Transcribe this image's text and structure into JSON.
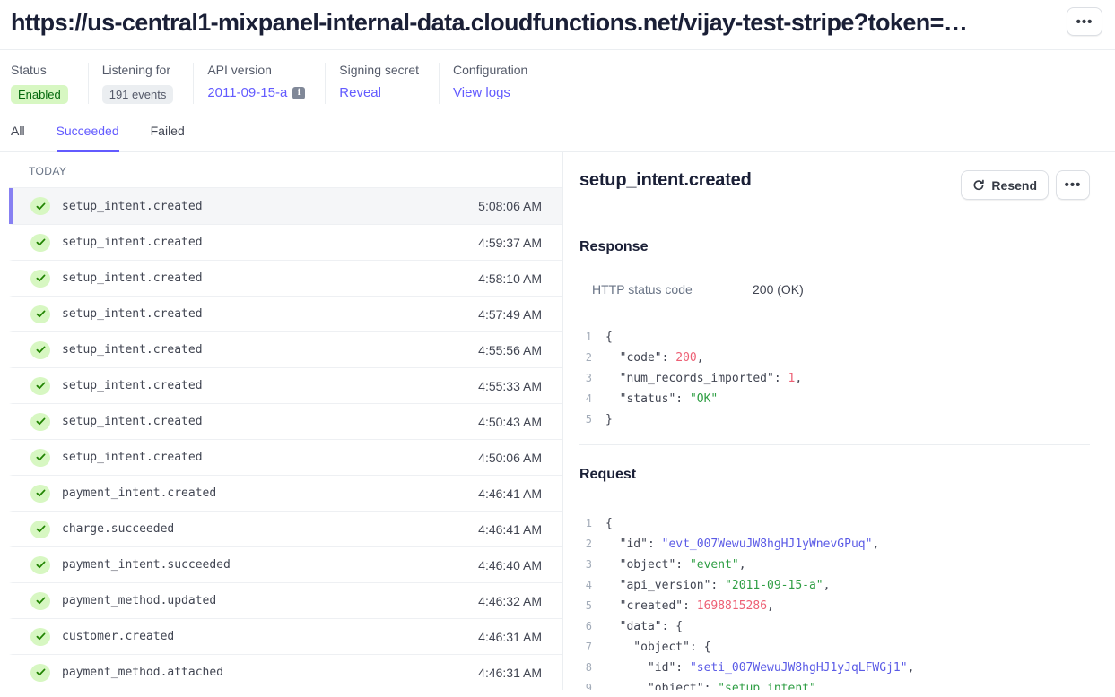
{
  "header": {
    "url_title": "https://us-central1-mixpanel-internal-data.cloudfunctions.net/vijay-test-stripe?token=…",
    "more_label": "•••"
  },
  "info_bar": {
    "status": {
      "label": "Status",
      "value": "Enabled"
    },
    "listening": {
      "label": "Listening for",
      "value": "191 events"
    },
    "api_version": {
      "label": "API version",
      "value": "2011-09-15-a",
      "info_icon": "i"
    },
    "signing_secret": {
      "label": "Signing secret",
      "value": "Reveal"
    },
    "configuration": {
      "label": "Configuration",
      "value": "View logs"
    }
  },
  "tabs": {
    "all": "All",
    "succeeded": "Succeeded",
    "failed": "Failed",
    "active": "Succeeded"
  },
  "event_list": {
    "group_label": "TODAY",
    "events": [
      {
        "name": "setup_intent.created",
        "time": "5:08:06 AM",
        "selected": true
      },
      {
        "name": "setup_intent.created",
        "time": "4:59:37 AM",
        "selected": false
      },
      {
        "name": "setup_intent.created",
        "time": "4:58:10 AM",
        "selected": false
      },
      {
        "name": "setup_intent.created",
        "time": "4:57:49 AM",
        "selected": false
      },
      {
        "name": "setup_intent.created",
        "time": "4:55:56 AM",
        "selected": false
      },
      {
        "name": "setup_intent.created",
        "time": "4:55:33 AM",
        "selected": false
      },
      {
        "name": "setup_intent.created",
        "time": "4:50:43 AM",
        "selected": false
      },
      {
        "name": "setup_intent.created",
        "time": "4:50:06 AM",
        "selected": false
      },
      {
        "name": "payment_intent.created",
        "time": "4:46:41 AM",
        "selected": false
      },
      {
        "name": "charge.succeeded",
        "time": "4:46:41 AM",
        "selected": false
      },
      {
        "name": "payment_intent.succeeded",
        "time": "4:46:40 AM",
        "selected": false
      },
      {
        "name": "payment_method.updated",
        "time": "4:46:32 AM",
        "selected": false
      },
      {
        "name": "customer.created",
        "time": "4:46:31 AM",
        "selected": false
      },
      {
        "name": "payment_method.attached",
        "time": "4:46:31 AM",
        "selected": false
      }
    ]
  },
  "detail": {
    "title": "setup_intent.created",
    "resend_label": "Resend",
    "more_label": "•••",
    "response": {
      "heading": "Response",
      "http_label": "HTTP status code",
      "http_value": "200 (OK)",
      "lines": [
        [
          {
            "t": "{",
            "c": "p"
          }
        ],
        [
          {
            "t": "  \"code\"",
            "c": "k"
          },
          {
            "t": ": ",
            "c": "p"
          },
          {
            "t": "200",
            "c": "n"
          },
          {
            "t": ",",
            "c": "p"
          }
        ],
        [
          {
            "t": "  \"num_records_imported\"",
            "c": "k"
          },
          {
            "t": ": ",
            "c": "p"
          },
          {
            "t": "1",
            "c": "n"
          },
          {
            "t": ",",
            "c": "p"
          }
        ],
        [
          {
            "t": "  \"status\"",
            "c": "k"
          },
          {
            "t": ": ",
            "c": "p"
          },
          {
            "t": "\"OK\"",
            "c": "s"
          }
        ],
        [
          {
            "t": "}",
            "c": "p"
          }
        ]
      ]
    },
    "request": {
      "heading": "Request",
      "lines": [
        [
          {
            "t": "{",
            "c": "p"
          }
        ],
        [
          {
            "t": "  \"id\"",
            "c": "k"
          },
          {
            "t": ": ",
            "c": "p"
          },
          {
            "t": "\"evt_007WewuJW8hgHJ1yWnevGPuq\"",
            "c": "id"
          },
          {
            "t": ",",
            "c": "p"
          }
        ],
        [
          {
            "t": "  \"object\"",
            "c": "k"
          },
          {
            "t": ": ",
            "c": "p"
          },
          {
            "t": "\"event\"",
            "c": "s"
          },
          {
            "t": ",",
            "c": "p"
          }
        ],
        [
          {
            "t": "  \"api_version\"",
            "c": "k"
          },
          {
            "t": ": ",
            "c": "p"
          },
          {
            "t": "\"2011-09-15-a\"",
            "c": "s"
          },
          {
            "t": ",",
            "c": "p"
          }
        ],
        [
          {
            "t": "  \"created\"",
            "c": "k"
          },
          {
            "t": ": ",
            "c": "p"
          },
          {
            "t": "1698815286",
            "c": "n"
          },
          {
            "t": ",",
            "c": "p"
          }
        ],
        [
          {
            "t": "  \"data\"",
            "c": "k"
          },
          {
            "t": ": ",
            "c": "p"
          },
          {
            "t": "{",
            "c": "p"
          }
        ],
        [
          {
            "t": "    \"object\"",
            "c": "k"
          },
          {
            "t": ": ",
            "c": "p"
          },
          {
            "t": "{",
            "c": "p"
          }
        ],
        [
          {
            "t": "      \"id\"",
            "c": "k"
          },
          {
            "t": ": ",
            "c": "p"
          },
          {
            "t": "\"seti_007WewuJW8hgHJ1yJqLFWGj1\"",
            "c": "id"
          },
          {
            "t": ",",
            "c": "p"
          }
        ],
        [
          {
            "t": "      \"object\"",
            "c": "k"
          },
          {
            "t": ": ",
            "c": "p"
          },
          {
            "t": "\"setup_intent\"",
            "c": "s"
          },
          {
            "t": ",",
            "c": "p"
          }
        ]
      ]
    }
  },
  "colors": {
    "accent": "#635bff",
    "selected_border": "#8780f2",
    "success_bg": "#d7f7c2",
    "success_text": "#05690d",
    "code_number": "#ed5f74",
    "code_string": "#2f9e44",
    "code_id": "#5b5be6"
  }
}
